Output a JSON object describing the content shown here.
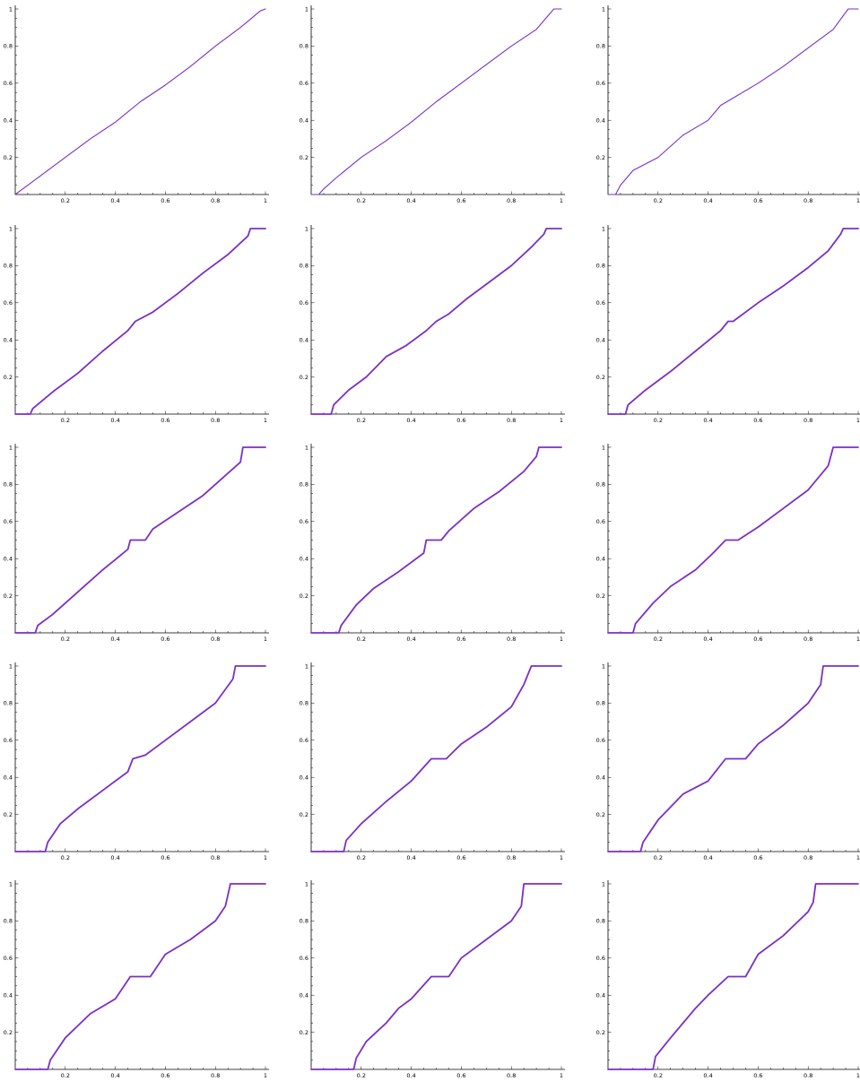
{
  "style": {
    "line_color": "#7b2fc6",
    "axis_color": "#000000",
    "background": "#ffffff"
  },
  "chart_data": [
    {
      "type": "line",
      "xlim": [
        0,
        1
      ],
      "ylim": [
        0,
        1
      ],
      "grid": false,
      "x_ticks": [
        "0.2",
        "0.4",
        "0.6",
        "0.8",
        "1"
      ],
      "y_ticks": [
        "0.2",
        "0.4",
        "0.6",
        "0.8",
        "1"
      ],
      "series": [
        {
          "x": [
            0,
            0.02,
            0.1,
            0.2,
            0.3,
            0.4,
            0.5,
            0.6,
            0.7,
            0.8,
            0.9,
            0.98,
            1
          ],
          "y": [
            0,
            0.02,
            0.1,
            0.2,
            0.3,
            0.39,
            0.5,
            0.59,
            0.69,
            0.8,
            0.9,
            0.99,
            1
          ]
        }
      ]
    },
    {
      "type": "line",
      "xlim": [
        0,
        1
      ],
      "ylim": [
        0,
        1
      ],
      "grid": false,
      "x_ticks": [
        "0.2",
        "0.4",
        "0.6",
        "0.8",
        "1"
      ],
      "y_ticks": [
        "0.2",
        "0.4",
        "0.6",
        "0.8",
        "1"
      ],
      "series": [
        {
          "x": [
            0,
            0.03,
            0.05,
            0.1,
            0.2,
            0.3,
            0.4,
            0.5,
            0.6,
            0.7,
            0.8,
            0.9,
            0.97,
            1
          ],
          "y": [
            0,
            0,
            0.03,
            0.09,
            0.2,
            0.29,
            0.39,
            0.5,
            0.6,
            0.7,
            0.8,
            0.89,
            1,
            1
          ]
        }
      ]
    },
    {
      "type": "line",
      "xlim": [
        0,
        1
      ],
      "ylim": [
        0,
        1
      ],
      "grid": false,
      "x_ticks": [
        "0.2",
        "0.4",
        "0.6",
        "0.8",
        "1"
      ],
      "y_ticks": [
        "0.2",
        "0.4",
        "0.6",
        "0.8",
        "1"
      ],
      "series": [
        {
          "x": [
            0,
            0.03,
            0.05,
            0.1,
            0.2,
            0.3,
            0.4,
            0.45,
            0.5,
            0.6,
            0.7,
            0.8,
            0.9,
            0.96,
            1
          ],
          "y": [
            0,
            0,
            0.05,
            0.13,
            0.2,
            0.32,
            0.4,
            0.48,
            0.52,
            0.6,
            0.69,
            0.79,
            0.89,
            1,
            1
          ]
        }
      ]
    },
    {
      "type": "line",
      "xlim": [
        0,
        1
      ],
      "ylim": [
        0,
        1
      ],
      "grid": false,
      "x_ticks": [
        "0.2",
        "0.4",
        "0.6",
        "0.8",
        "1"
      ],
      "y_ticks": [
        "0.2",
        "0.4",
        "0.6",
        "0.8",
        "1"
      ],
      "series": [
        {
          "x": [
            0,
            0.06,
            0.07,
            0.15,
            0.25,
            0.35,
            0.45,
            0.48,
            0.55,
            0.65,
            0.75,
            0.85,
            0.93,
            0.94,
            1
          ],
          "y": [
            0,
            0,
            0.03,
            0.12,
            0.22,
            0.34,
            0.45,
            0.5,
            0.55,
            0.65,
            0.76,
            0.86,
            0.96,
            1,
            1
          ]
        }
      ]
    },
    {
      "type": "line",
      "xlim": [
        0,
        1
      ],
      "ylim": [
        0,
        1
      ],
      "grid": false,
      "x_ticks": [
        "0.2",
        "0.4",
        "0.6",
        "0.8",
        "1"
      ],
      "y_ticks": [
        "0.2",
        "0.4",
        "0.6",
        "0.8",
        "1"
      ],
      "series": [
        {
          "x": [
            0,
            0.08,
            0.09,
            0.15,
            0.22,
            0.3,
            0.38,
            0.46,
            0.5,
            0.55,
            0.62,
            0.7,
            0.8,
            0.88,
            0.93,
            0.94,
            1
          ],
          "y": [
            0,
            0,
            0.05,
            0.13,
            0.2,
            0.31,
            0.37,
            0.45,
            0.5,
            0.54,
            0.62,
            0.7,
            0.8,
            0.9,
            0.97,
            1,
            1
          ]
        }
      ]
    },
    {
      "type": "line",
      "xlim": [
        0,
        1
      ],
      "ylim": [
        0,
        1
      ],
      "grid": false,
      "x_ticks": [
        "0.2",
        "0.4",
        "0.6",
        "0.8",
        "1"
      ],
      "y_ticks": [
        "0.2",
        "0.4",
        "0.6",
        "0.8",
        "1"
      ],
      "series": [
        {
          "x": [
            0,
            0.07,
            0.08,
            0.15,
            0.25,
            0.35,
            0.45,
            0.48,
            0.5,
            0.6,
            0.7,
            0.8,
            0.88,
            0.93,
            0.94,
            1
          ],
          "y": [
            0,
            0,
            0.05,
            0.13,
            0.23,
            0.34,
            0.45,
            0.5,
            0.5,
            0.6,
            0.69,
            0.79,
            0.88,
            0.97,
            1,
            1
          ]
        }
      ]
    },
    {
      "type": "line",
      "xlim": [
        0,
        1
      ],
      "ylim": [
        0,
        1
      ],
      "grid": false,
      "x_ticks": [
        "0.2",
        "0.4",
        "0.6",
        "0.8",
        "1"
      ],
      "y_ticks": [
        "0.2",
        "0.4",
        "0.6",
        "0.8",
        "1"
      ],
      "series": [
        {
          "x": [
            0,
            0.08,
            0.09,
            0.15,
            0.25,
            0.35,
            0.45,
            0.46,
            0.52,
            0.55,
            0.65,
            0.75,
            0.85,
            0.9,
            0.91,
            1
          ],
          "y": [
            0,
            0,
            0.04,
            0.1,
            0.22,
            0.34,
            0.45,
            0.5,
            0.5,
            0.56,
            0.65,
            0.74,
            0.86,
            0.92,
            1,
            1
          ]
        }
      ]
    },
    {
      "type": "line",
      "xlim": [
        0,
        1
      ],
      "ylim": [
        0,
        1
      ],
      "grid": false,
      "x_ticks": [
        "0.2",
        "0.4",
        "0.6",
        "0.8",
        "1"
      ],
      "y_ticks": [
        "0.2",
        "0.4",
        "0.6",
        "0.8",
        "1"
      ],
      "series": [
        {
          "x": [
            0,
            0.11,
            0.12,
            0.18,
            0.25,
            0.35,
            0.45,
            0.46,
            0.52,
            0.55,
            0.65,
            0.75,
            0.85,
            0.9,
            0.91,
            1
          ],
          "y": [
            0,
            0,
            0.04,
            0.15,
            0.24,
            0.33,
            0.43,
            0.5,
            0.5,
            0.55,
            0.67,
            0.76,
            0.87,
            0.95,
            1,
            1
          ]
        }
      ]
    },
    {
      "type": "line",
      "xlim": [
        0,
        1
      ],
      "ylim": [
        0,
        1
      ],
      "grid": false,
      "x_ticks": [
        "0.2",
        "0.4",
        "0.6",
        "0.8",
        "1"
      ],
      "y_ticks": [
        "0.2",
        "0.4",
        "0.6",
        "0.8",
        "1"
      ],
      "series": [
        {
          "x": [
            0,
            0.1,
            0.11,
            0.18,
            0.25,
            0.35,
            0.42,
            0.47,
            0.52,
            0.6,
            0.7,
            0.8,
            0.88,
            0.9,
            1
          ],
          "y": [
            0,
            0,
            0.05,
            0.16,
            0.25,
            0.34,
            0.43,
            0.5,
            0.5,
            0.57,
            0.67,
            0.77,
            0.9,
            1,
            1
          ]
        }
      ]
    },
    {
      "type": "line",
      "xlim": [
        0,
        1
      ],
      "ylim": [
        0,
        1
      ],
      "grid": false,
      "x_ticks": [
        "0.2",
        "0.4",
        "0.6",
        "0.8",
        "1"
      ],
      "y_ticks": [
        "0.2",
        "0.4",
        "0.6",
        "0.8",
        "1"
      ],
      "series": [
        {
          "x": [
            0,
            0.12,
            0.13,
            0.18,
            0.25,
            0.35,
            0.45,
            0.47,
            0.52,
            0.6,
            0.7,
            0.8,
            0.87,
            0.88,
            1
          ],
          "y": [
            0,
            0,
            0.05,
            0.15,
            0.23,
            0.33,
            0.43,
            0.5,
            0.52,
            0.6,
            0.7,
            0.8,
            0.93,
            1,
            1
          ]
        }
      ]
    },
    {
      "type": "line",
      "xlim": [
        0,
        1
      ],
      "ylim": [
        0,
        1
      ],
      "grid": false,
      "x_ticks": [
        "0.2",
        "0.4",
        "0.6",
        "0.8",
        "1"
      ],
      "y_ticks": [
        "0.2",
        "0.4",
        "0.6",
        "0.8",
        "1"
      ],
      "series": [
        {
          "x": [
            0,
            0.13,
            0.14,
            0.2,
            0.3,
            0.4,
            0.48,
            0.54,
            0.6,
            0.7,
            0.8,
            0.85,
            0.88,
            1
          ],
          "y": [
            0,
            0,
            0.06,
            0.15,
            0.27,
            0.38,
            0.5,
            0.5,
            0.58,
            0.67,
            0.78,
            0.9,
            1,
            1
          ]
        }
      ]
    },
    {
      "type": "line",
      "xlim": [
        0,
        1
      ],
      "ylim": [
        0,
        1
      ],
      "grid": false,
      "x_ticks": [
        "0.2",
        "0.4",
        "0.6",
        "0.8",
        "1"
      ],
      "y_ticks": [
        "0.2",
        "0.4",
        "0.6",
        "0.8",
        "1"
      ],
      "series": [
        {
          "x": [
            0,
            0.13,
            0.14,
            0.2,
            0.3,
            0.4,
            0.47,
            0.55,
            0.6,
            0.7,
            0.8,
            0.85,
            0.86,
            1
          ],
          "y": [
            0,
            0,
            0.05,
            0.17,
            0.31,
            0.38,
            0.5,
            0.5,
            0.58,
            0.68,
            0.8,
            0.9,
            1,
            1
          ]
        }
      ]
    },
    {
      "type": "line",
      "xlim": [
        0,
        1
      ],
      "ylim": [
        0,
        1
      ],
      "grid": false,
      "x_ticks": [
        "0.2",
        "0.4",
        "0.6",
        "0.8",
        "1"
      ],
      "y_ticks": [
        "0.2",
        "0.4",
        "0.6",
        "0.8",
        "1"
      ],
      "series": [
        {
          "x": [
            0,
            0.13,
            0.14,
            0.2,
            0.3,
            0.4,
            0.46,
            0.54,
            0.6,
            0.7,
            0.8,
            0.84,
            0.86,
            1
          ],
          "y": [
            0,
            0,
            0.05,
            0.17,
            0.3,
            0.38,
            0.5,
            0.5,
            0.62,
            0.7,
            0.8,
            0.88,
            1,
            1
          ]
        }
      ]
    },
    {
      "type": "line",
      "xlim": [
        0,
        1
      ],
      "ylim": [
        0,
        1
      ],
      "grid": false,
      "x_ticks": [
        "0.2",
        "0.4",
        "0.6",
        "0.8",
        "1"
      ],
      "y_ticks": [
        "0.2",
        "0.4",
        "0.6",
        "0.8",
        "1"
      ],
      "series": [
        {
          "x": [
            0,
            0.17,
            0.18,
            0.22,
            0.3,
            0.35,
            0.4,
            0.48,
            0.55,
            0.6,
            0.7,
            0.8,
            0.84,
            0.85,
            1
          ],
          "y": [
            0,
            0,
            0.06,
            0.15,
            0.25,
            0.33,
            0.38,
            0.5,
            0.5,
            0.6,
            0.7,
            0.8,
            0.88,
            1,
            1
          ]
        }
      ]
    },
    {
      "type": "line",
      "xlim": [
        0,
        1
      ],
      "ylim": [
        0,
        1
      ],
      "grid": false,
      "x_ticks": [
        "0.2",
        "0.4",
        "0.6",
        "0.8",
        "1"
      ],
      "y_ticks": [
        "0.2",
        "0.4",
        "0.6",
        "0.8",
        "1"
      ],
      "series": [
        {
          "x": [
            0,
            0.18,
            0.19,
            0.25,
            0.3,
            0.35,
            0.4,
            0.48,
            0.55,
            0.6,
            0.7,
            0.8,
            0.82,
            0.83,
            1
          ],
          "y": [
            0,
            0,
            0.07,
            0.17,
            0.25,
            0.33,
            0.4,
            0.5,
            0.5,
            0.62,
            0.72,
            0.85,
            0.9,
            1,
            1
          ]
        }
      ]
    }
  ]
}
